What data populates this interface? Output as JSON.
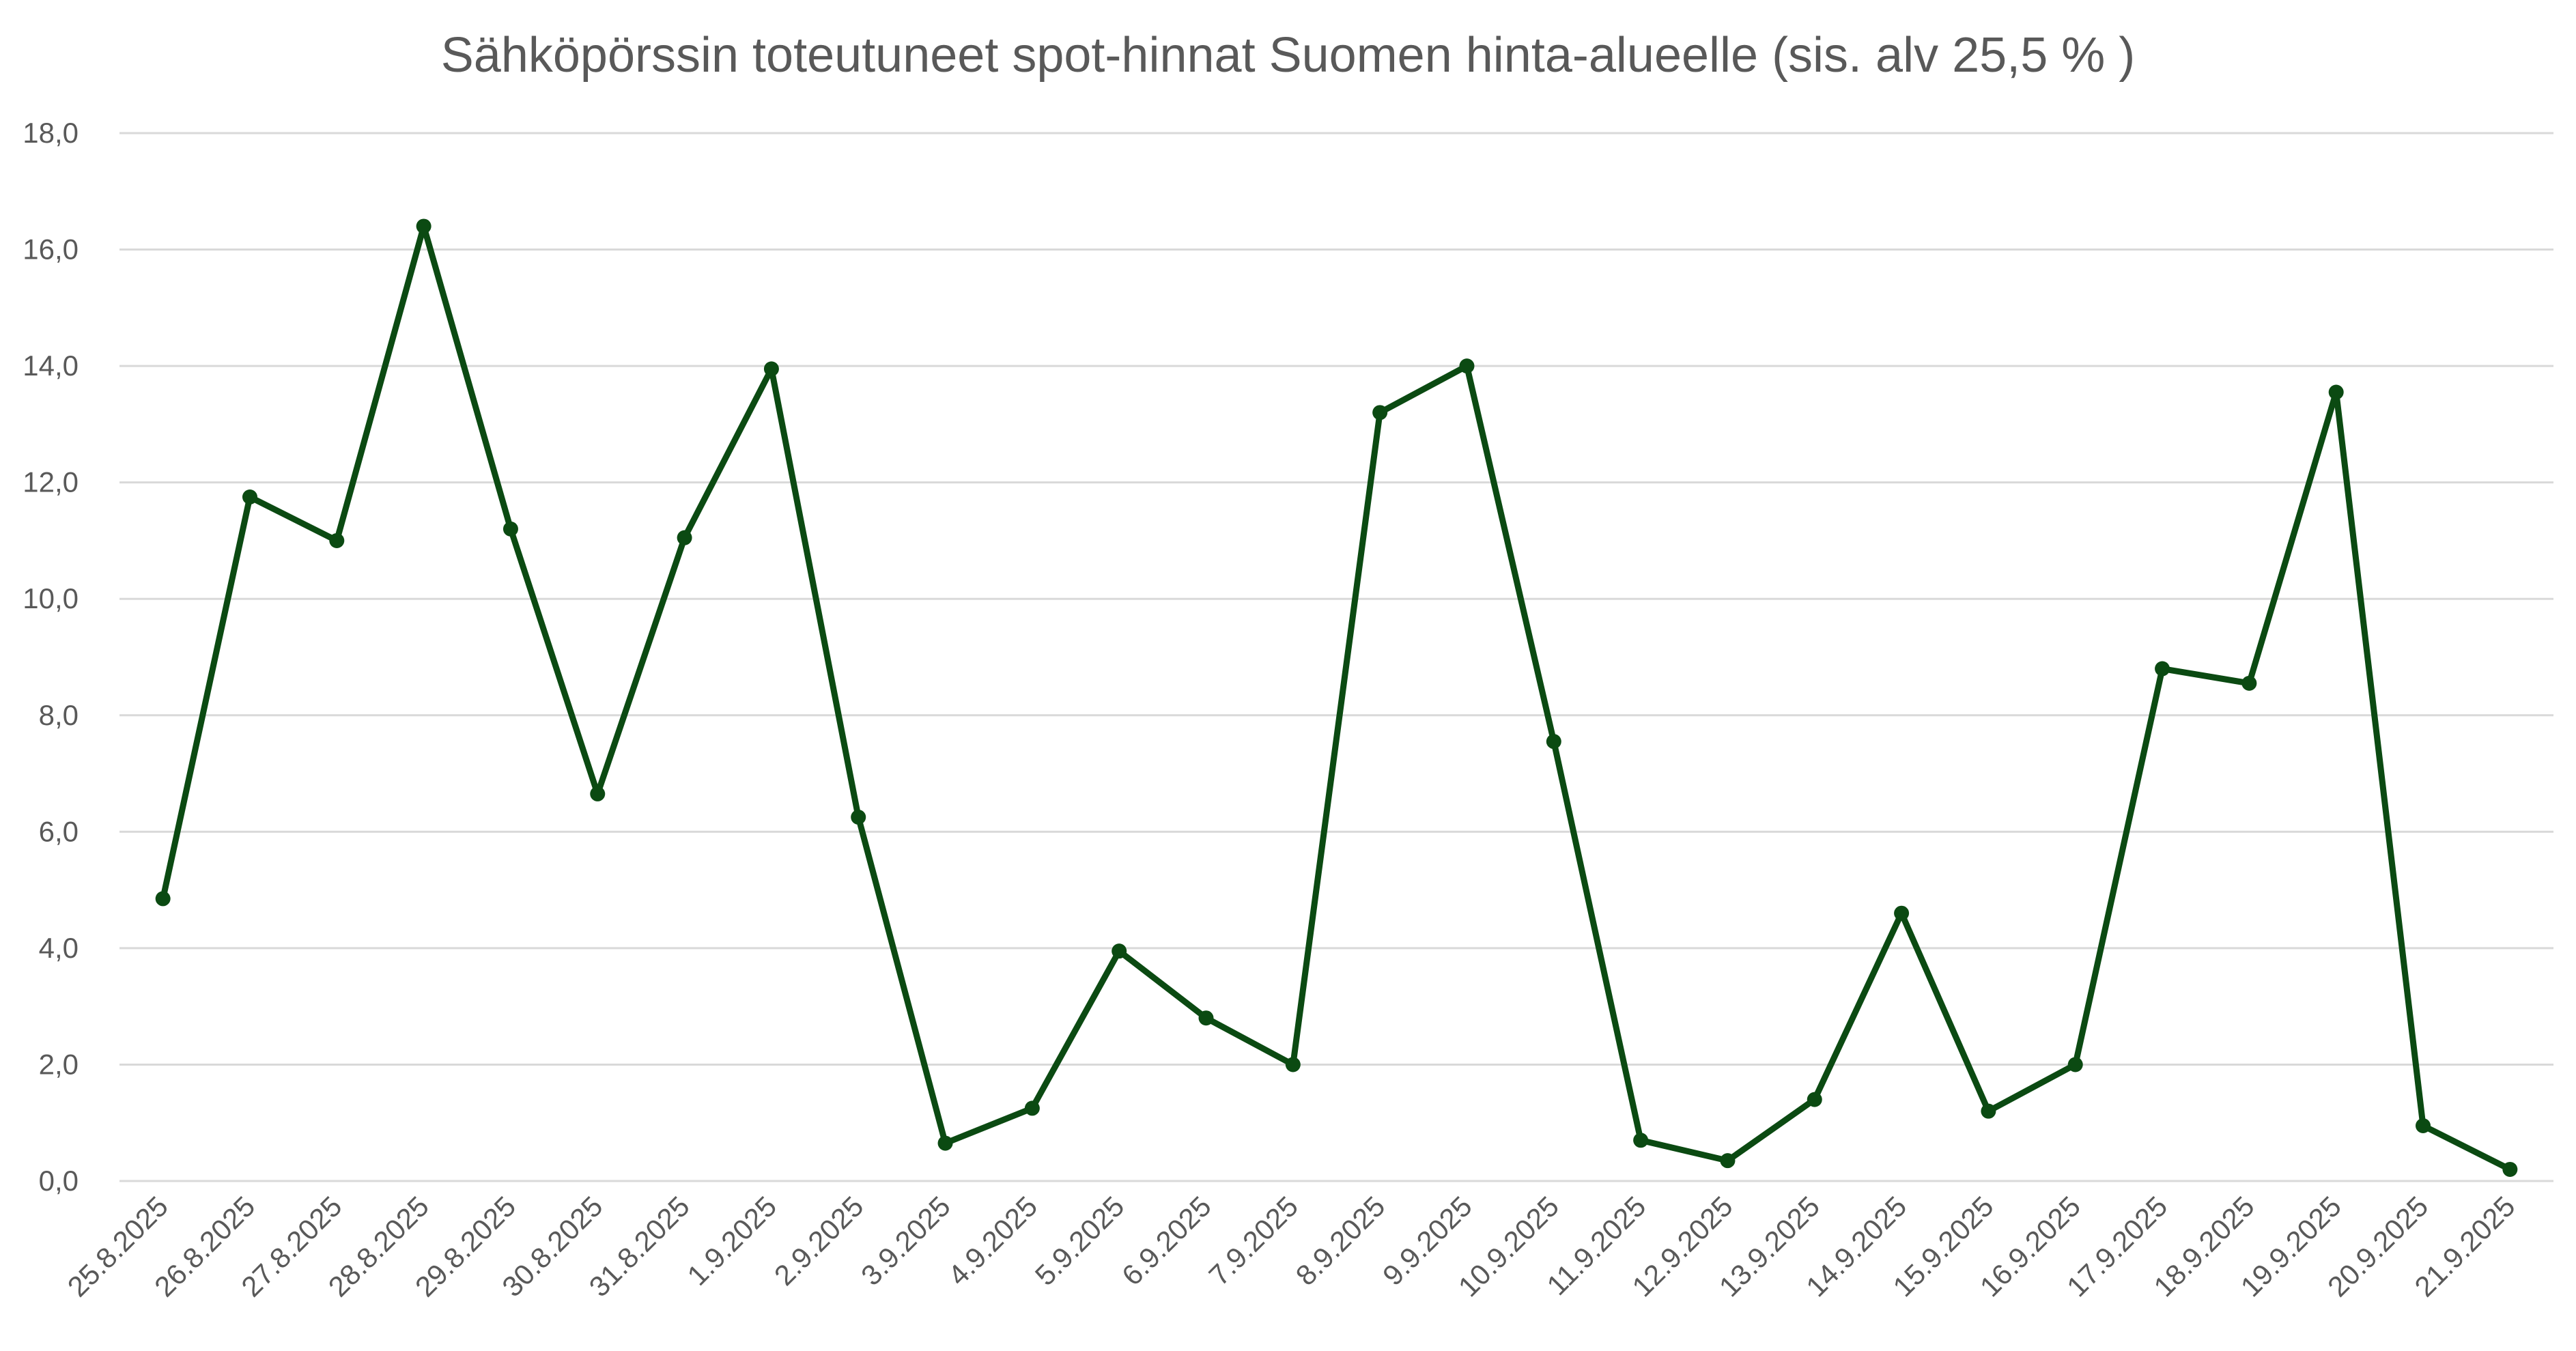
{
  "chart_data": {
    "type": "line",
    "title": "Sähköpörssin toteutuneet spot-hinnat Suomen hinta-alueelle (sis. alv 25,5 % )",
    "xlabel": "",
    "ylabel": "",
    "ylim": [
      0,
      18
    ],
    "y_ticks": [
      "0,0",
      "2,0",
      "4,0",
      "6,0",
      "8,0",
      "10,0",
      "12,0",
      "14,0",
      "16,0",
      "18,0"
    ],
    "grid": "horizontal",
    "legend": "none",
    "categories": [
      "25.8.2025",
      "26.8.2025",
      "27.8.2025",
      "28.8.2025",
      "29.8.2025",
      "30.8.2025",
      "31.8.2025",
      "1.9.2025",
      "2.9.2025",
      "3.9.2025",
      "4.9.2025",
      "5.9.2025",
      "6.9.2025",
      "7.9.2025",
      "8.9.2025",
      "9.9.2025",
      "10.9.2025",
      "11.9.2025",
      "12.9.2025",
      "13.9.2025",
      "14.9.2025",
      "15.9.2025",
      "16.9.2025",
      "17.9.2025",
      "18.9.2025",
      "19.9.2025",
      "20.9.2025",
      "21.9.2025"
    ],
    "series": [
      {
        "color": "#0b4a12",
        "values": [
          4.85,
          11.75,
          11.0,
          16.4,
          11.2,
          6.65,
          11.05,
          13.95,
          6.25,
          0.65,
          1.25,
          3.95,
          2.8,
          2.0,
          13.2,
          14.0,
          7.55,
          0.7,
          0.35,
          1.4,
          4.6,
          1.2,
          2.0,
          8.8,
          8.55,
          13.55,
          0.95,
          0.2
        ]
      }
    ]
  }
}
